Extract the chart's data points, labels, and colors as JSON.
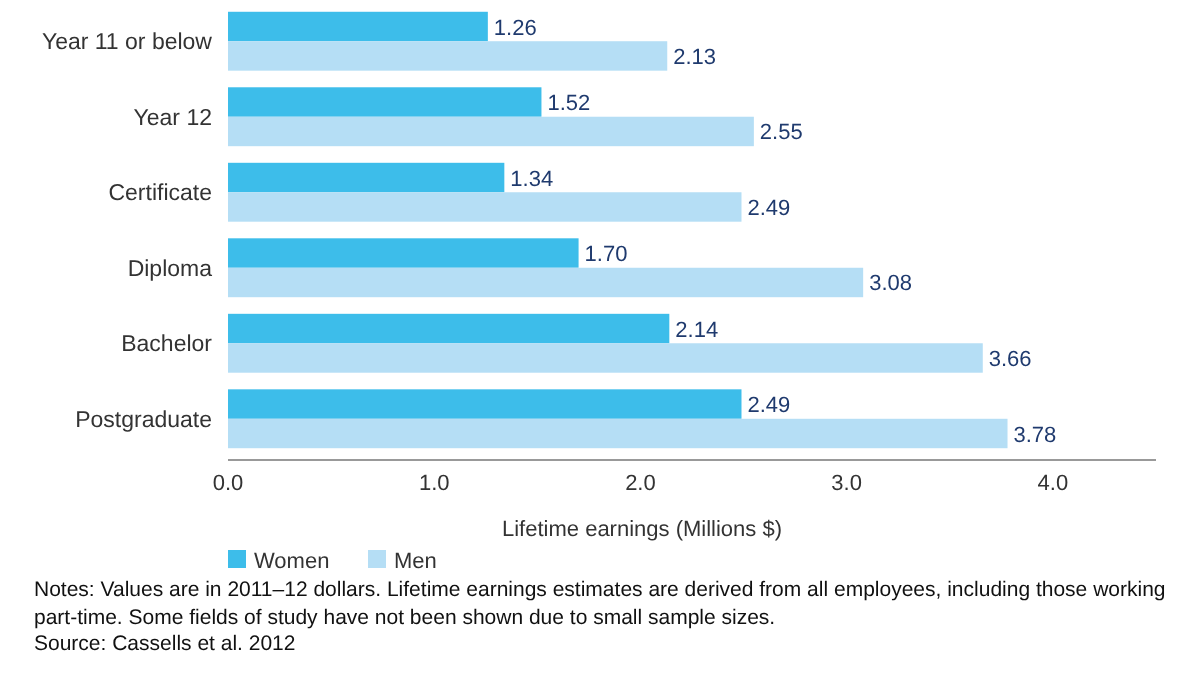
{
  "chart_data": {
    "type": "bar",
    "orientation": "horizontal",
    "xlabel": "Lifetime earnings (Millions $)",
    "categories": [
      "Year 11 or below",
      "Year 12",
      "Certificate",
      "Diploma",
      "Bachelor",
      "Postgraduate"
    ],
    "series": [
      {
        "name": "Women",
        "color": "#3dbdea",
        "values": [
          1.26,
          1.52,
          1.34,
          1.7,
          2.14,
          2.49
        ],
        "value_labels": [
          "1.26",
          "1.52",
          "1.34",
          "1.70",
          "2.14",
          "2.49"
        ]
      },
      {
        "name": "Men",
        "color": "#b5def5",
        "values": [
          2.13,
          2.55,
          2.49,
          3.08,
          3.66,
          3.78
        ],
        "value_labels": [
          "2.13",
          "2.55",
          "2.49",
          "3.08",
          "3.66",
          "3.78"
        ]
      }
    ],
    "xlim": [
      0,
      4.5
    ],
    "xticks": [
      {
        "value": 0,
        "label": "0.0"
      },
      {
        "value": 1,
        "label": "1.0"
      },
      {
        "value": 2,
        "label": "2.0"
      },
      {
        "value": 3,
        "label": "3.0"
      },
      {
        "value": 4,
        "label": "4.0"
      }
    ],
    "legend": "bottom",
    "grid": false,
    "annotations": [
      "Notes: Values are in 2011–12 dollars. Lifetime earnings estimates are derived from all employees, including those working part-time. Some fields of study have not been shown due to small sample sizes.",
      "Source: Cassells et al. 2012"
    ]
  }
}
